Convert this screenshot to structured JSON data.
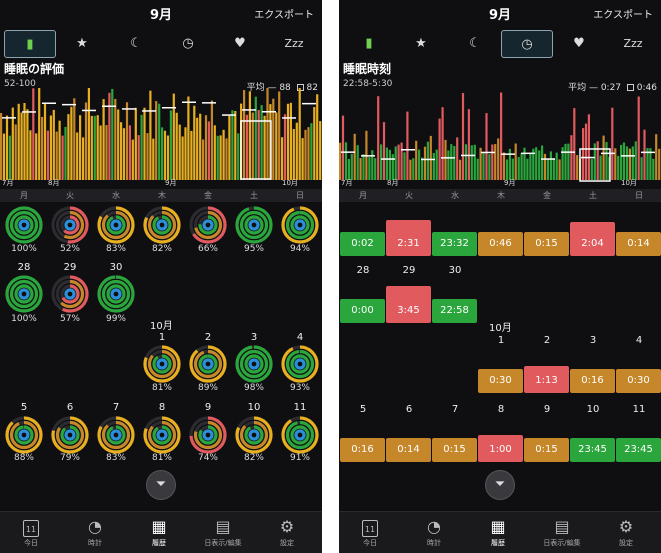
{
  "screens": [
    {
      "month": "9月",
      "export_label": "エクスポート",
      "tabs": [
        "battery",
        "star",
        "moon",
        "clock",
        "heart",
        "Zzz"
      ],
      "active_tab": 0,
      "chart": {
        "title": "睡眠の評価",
        "subtitle": "52-100",
        "legend_avg": "平均 — 88",
        "legend_box": "82",
        "month_labels": [
          "7月",
          "8月",
          "9月",
          "10月"
        ]
      },
      "weekdays": [
        "月",
        "火",
        "水",
        "木",
        "金",
        "土",
        "日"
      ],
      "week1": [
        {
          "pct": "100%",
          "level": 1.0
        },
        {
          "pct": "52%",
          "level": 0.52
        },
        {
          "pct": "83%",
          "level": 0.83
        },
        {
          "pct": "82%",
          "level": 0.82
        },
        {
          "pct": "66%",
          "level": 0.66
        },
        {
          "pct": "95%",
          "level": 0.95
        },
        {
          "pct": "94%",
          "level": 0.94
        }
      ],
      "week2": [
        {
          "day": "28",
          "pct": "100%",
          "level": 1.0
        },
        {
          "day": "29",
          "pct": "57%",
          "level": 0.57
        },
        {
          "day": "30",
          "pct": "99%",
          "level": 0.99
        }
      ],
      "oct_label": "10月",
      "week3": [
        {
          "day": "1",
          "pct": "81%",
          "level": 0.81
        },
        {
          "day": "2",
          "pct": "89%",
          "level": 0.89
        },
        {
          "day": "3",
          "pct": "98%",
          "level": 0.98
        },
        {
          "day": "4",
          "pct": "93%",
          "level": 0.93
        }
      ],
      "week4": [
        {
          "day": "5",
          "pct": "88%",
          "level": 0.88
        },
        {
          "day": "6",
          "pct": "79%",
          "level": 0.79
        },
        {
          "day": "7",
          "pct": "83%",
          "level": 0.83
        },
        {
          "day": "8",
          "pct": "81%",
          "level": 0.81
        },
        {
          "day": "9",
          "pct": "74%",
          "level": 0.74
        },
        {
          "day": "10",
          "pct": "82%",
          "level": 0.82
        },
        {
          "day": "11",
          "pct": "91%",
          "level": 0.91
        }
      ],
      "nav": [
        {
          "label": "今日",
          "icon": "11"
        },
        {
          "label": "時計",
          "icon": ""
        },
        {
          "label": "履歴",
          "icon": ""
        },
        {
          "label": "日表示/編集",
          "icon": ""
        },
        {
          "label": "設定",
          "icon": ""
        }
      ],
      "active_nav": 2
    },
    {
      "month": "9月",
      "export_label": "エクスポート",
      "tabs": [
        "battery",
        "star",
        "moon",
        "clock",
        "heart",
        "Zzz"
      ],
      "active_tab": 3,
      "chart": {
        "title": "睡眠時刻",
        "subtitle": "22:58-5:30",
        "legend_avg": "平均 — 0:27",
        "legend_box": "0:46",
        "month_labels": [
          "7月",
          "8月",
          "9月",
          "10月"
        ]
      },
      "weekdays": [
        "月",
        "火",
        "水",
        "木",
        "金",
        "土",
        "日"
      ],
      "week1": [
        {
          "time": "0:02",
          "color": "green"
        },
        {
          "time": "2:31",
          "color": "red"
        },
        {
          "time": "23:32",
          "color": "green"
        },
        {
          "time": "0:46",
          "color": "orange"
        },
        {
          "time": "0:15",
          "color": "orange"
        },
        {
          "time": "2:04",
          "color": "red"
        },
        {
          "time": "0:14",
          "color": "orange"
        }
      ],
      "week2": [
        {
          "day": "28",
          "time": "0:00",
          "color": "green"
        },
        {
          "day": "29",
          "time": "3:45",
          "color": "red"
        },
        {
          "day": "30",
          "time": "22:58",
          "color": "green"
        }
      ],
      "oct_label": "10月",
      "week3": [
        {
          "day": "1",
          "time": "0:30",
          "color": "orange"
        },
        {
          "day": "2",
          "time": "1:13",
          "color": "red"
        },
        {
          "day": "3",
          "time": "0:16",
          "color": "orange"
        },
        {
          "day": "4",
          "time": "0:30",
          "color": "orange"
        }
      ],
      "week4": [
        {
          "day": "5",
          "time": "0:16",
          "color": "orange"
        },
        {
          "day": "6",
          "time": "0:14",
          "color": "orange"
        },
        {
          "day": "7",
          "time": "0:15",
          "color": "orange"
        },
        {
          "day": "8",
          "time": "1:00",
          "color": "red"
        },
        {
          "day": "9",
          "time": "0:15",
          "color": "orange"
        },
        {
          "day": "10",
          "time": "23:45",
          "color": "green"
        },
        {
          "day": "11",
          "time": "23:45",
          "color": "green"
        }
      ],
      "nav": [
        {
          "label": "今日",
          "icon": "11"
        },
        {
          "label": "時計",
          "icon": ""
        },
        {
          "label": "履歴",
          "icon": ""
        },
        {
          "label": "日表示/編集",
          "icon": ""
        },
        {
          "label": "設定",
          "icon": ""
        }
      ],
      "active_nav": 2
    }
  ],
  "colors": {
    "green": "#2aa63c",
    "orange": "#c6862a",
    "red": "#e05a5e",
    "ring_yellow": "#e8b020",
    "ring_blue": "#2a8fd8",
    "background": "#0f0f12"
  },
  "icons": {
    "tabs": [
      "battery-icon",
      "star-icon",
      "moon-icon",
      "clock-icon",
      "heart-icon",
      "zzz-icon"
    ],
    "nav": [
      "calendar-today-icon",
      "clock-icon",
      "grid-icon",
      "calendar-edit-icon",
      "gear-icon"
    ],
    "filter": "filter-icon"
  }
}
